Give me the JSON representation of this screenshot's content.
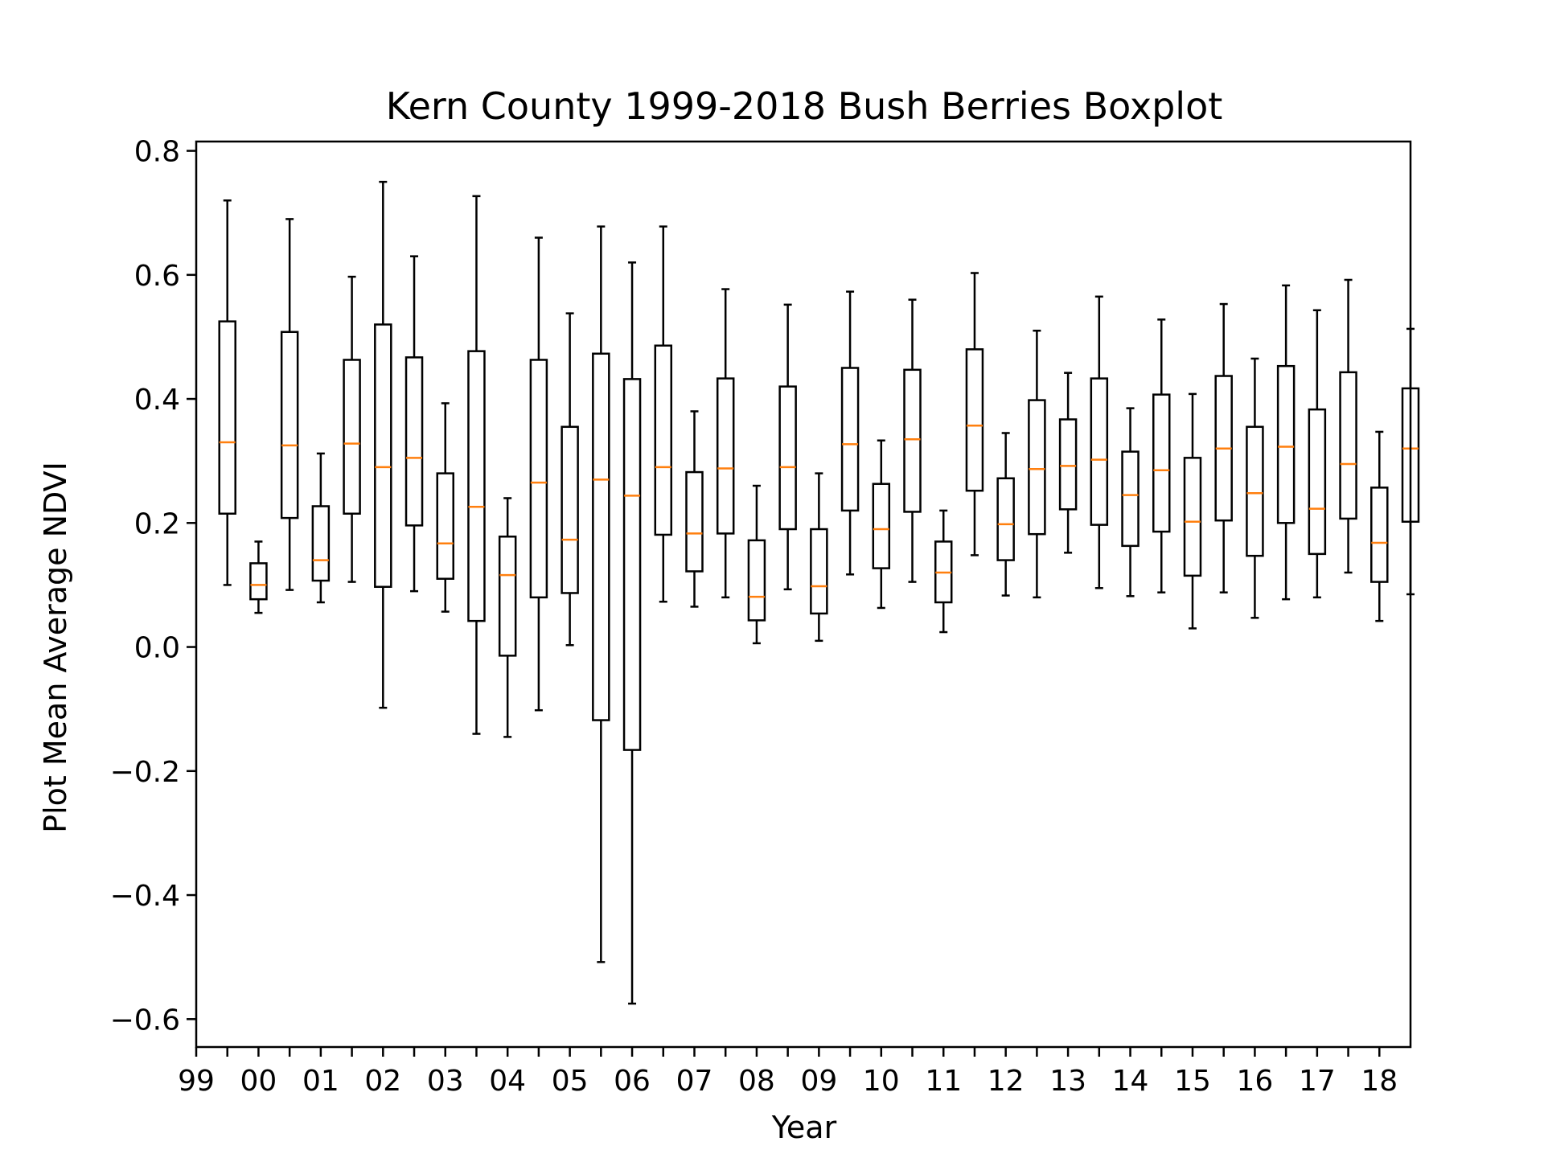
{
  "chart_data": {
    "type": "boxplot",
    "title": "Kern County 1999-2018 Bush Berries Boxplot",
    "xlabel": "Year",
    "ylabel": "Plot Mean Average NDVI",
    "ylim": [
      -0.645,
      0.815
    ],
    "yticks": [
      -0.6,
      -0.4,
      -0.2,
      0.0,
      0.2,
      0.4,
      0.6,
      0.8
    ],
    "ytick_labels": [
      "−0.6",
      "−0.4",
      "−0.2",
      "0.0",
      "0.2",
      "0.4",
      "0.6",
      "0.8"
    ],
    "xtick_labels": [
      "99",
      "00",
      "01",
      "02",
      "03",
      "04",
      "05",
      "06",
      "07",
      "08",
      "09",
      "10",
      "11",
      "12",
      "13",
      "14",
      "15",
      "16",
      "17",
      "18"
    ],
    "n_positions": 39,
    "grid": false,
    "colors": {
      "box": "#000000",
      "median": "#ff7f0e",
      "background": "#ffffff"
    },
    "boxes": [
      {
        "whislo": 0.1,
        "q1": 0.215,
        "med": 0.33,
        "q3": 0.525,
        "whishi": 0.72
      },
      {
        "whislo": 0.055,
        "q1": 0.077,
        "med": 0.1,
        "q3": 0.135,
        "whishi": 0.17
      },
      {
        "whislo": 0.092,
        "q1": 0.208,
        "med": 0.325,
        "q3": 0.508,
        "whishi": 0.69
      },
      {
        "whislo": 0.072,
        "q1": 0.107,
        "med": 0.14,
        "q3": 0.227,
        "whishi": 0.312
      },
      {
        "whislo": 0.105,
        "q1": 0.215,
        "med": 0.328,
        "q3": 0.463,
        "whishi": 0.597
      },
      {
        "whislo": -0.098,
        "q1": 0.097,
        "med": 0.29,
        "q3": 0.52,
        "whishi": 0.75
      },
      {
        "whislo": 0.09,
        "q1": 0.196,
        "med": 0.305,
        "q3": 0.467,
        "whishi": 0.63
      },
      {
        "whislo": 0.057,
        "q1": 0.11,
        "med": 0.167,
        "q3": 0.28,
        "whishi": 0.393
      },
      {
        "whislo": -0.14,
        "q1": 0.042,
        "med": 0.226,
        "q3": 0.477,
        "whishi": 0.727
      },
      {
        "whislo": -0.145,
        "q1": -0.014,
        "med": 0.116,
        "q3": 0.178,
        "whishi": 0.24
      },
      {
        "whislo": -0.102,
        "q1": 0.08,
        "med": 0.265,
        "q3": 0.463,
        "whishi": 0.66
      },
      {
        "whislo": 0.003,
        "q1": 0.087,
        "med": 0.173,
        "q3": 0.355,
        "whishi": 0.538
      },
      {
        "whislo": -0.508,
        "q1": -0.118,
        "med": 0.27,
        "q3": 0.473,
        "whishi": 0.678
      },
      {
        "whislo": -0.575,
        "q1": -0.166,
        "med": 0.244,
        "q3": 0.432,
        "whishi": 0.62
      },
      {
        "whislo": 0.073,
        "q1": 0.181,
        "med": 0.29,
        "q3": 0.486,
        "whishi": 0.678
      },
      {
        "whislo": 0.065,
        "q1": 0.122,
        "med": 0.183,
        "q3": 0.282,
        "whishi": 0.38
      },
      {
        "whislo": 0.08,
        "q1": 0.183,
        "med": 0.288,
        "q3": 0.433,
        "whishi": 0.577
      },
      {
        "whislo": 0.006,
        "q1": 0.043,
        "med": 0.081,
        "q3": 0.172,
        "whishi": 0.26
      },
      {
        "whislo": 0.093,
        "q1": 0.19,
        "med": 0.29,
        "q3": 0.42,
        "whishi": 0.552
      },
      {
        "whislo": 0.01,
        "q1": 0.054,
        "med": 0.098,
        "q3": 0.19,
        "whishi": 0.28
      },
      {
        "whislo": 0.117,
        "q1": 0.22,
        "med": 0.327,
        "q3": 0.45,
        "whishi": 0.573
      },
      {
        "whislo": 0.063,
        "q1": 0.127,
        "med": 0.19,
        "q3": 0.263,
        "whishi": 0.333
      },
      {
        "whislo": 0.105,
        "q1": 0.218,
        "med": 0.335,
        "q3": 0.447,
        "whishi": 0.56
      },
      {
        "whislo": 0.024,
        "q1": 0.072,
        "med": 0.12,
        "q3": 0.17,
        "whishi": 0.22
      },
      {
        "whislo": 0.148,
        "q1": 0.252,
        "med": 0.357,
        "q3": 0.48,
        "whishi": 0.603
      },
      {
        "whislo": 0.083,
        "q1": 0.14,
        "med": 0.198,
        "q3": 0.272,
        "whishi": 0.345
      },
      {
        "whislo": 0.08,
        "q1": 0.182,
        "med": 0.287,
        "q3": 0.398,
        "whishi": 0.51
      },
      {
        "whislo": 0.152,
        "q1": 0.222,
        "med": 0.292,
        "q3": 0.367,
        "whishi": 0.442
      },
      {
        "whislo": 0.095,
        "q1": 0.197,
        "med": 0.302,
        "q3": 0.433,
        "whishi": 0.565
      },
      {
        "whislo": 0.082,
        "q1": 0.163,
        "med": 0.245,
        "q3": 0.315,
        "whishi": 0.385
      },
      {
        "whislo": 0.088,
        "q1": 0.186,
        "med": 0.285,
        "q3": 0.407,
        "whishi": 0.528
      },
      {
        "whislo": 0.03,
        "q1": 0.115,
        "med": 0.202,
        "q3": 0.305,
        "whishi": 0.408
      },
      {
        "whislo": 0.088,
        "q1": 0.204,
        "med": 0.32,
        "q3": 0.437,
        "whishi": 0.553
      },
      {
        "whislo": 0.047,
        "q1": 0.147,
        "med": 0.248,
        "q3": 0.355,
        "whishi": 0.465
      },
      {
        "whislo": 0.077,
        "q1": 0.2,
        "med": 0.323,
        "q3": 0.453,
        "whishi": 0.583
      },
      {
        "whislo": 0.08,
        "q1": 0.15,
        "med": 0.223,
        "q3": 0.383,
        "whishi": 0.543
      },
      {
        "whislo": 0.12,
        "q1": 0.207,
        "med": 0.295,
        "q3": 0.443,
        "whishi": 0.592
      },
      {
        "whislo": 0.042,
        "q1": 0.105,
        "med": 0.168,
        "q3": 0.257,
        "whishi": 0.347
      },
      {
        "whislo": 0.085,
        "q1": 0.202,
        "med": 0.32,
        "q3": 0.417,
        "whishi": 0.513
      }
    ]
  }
}
